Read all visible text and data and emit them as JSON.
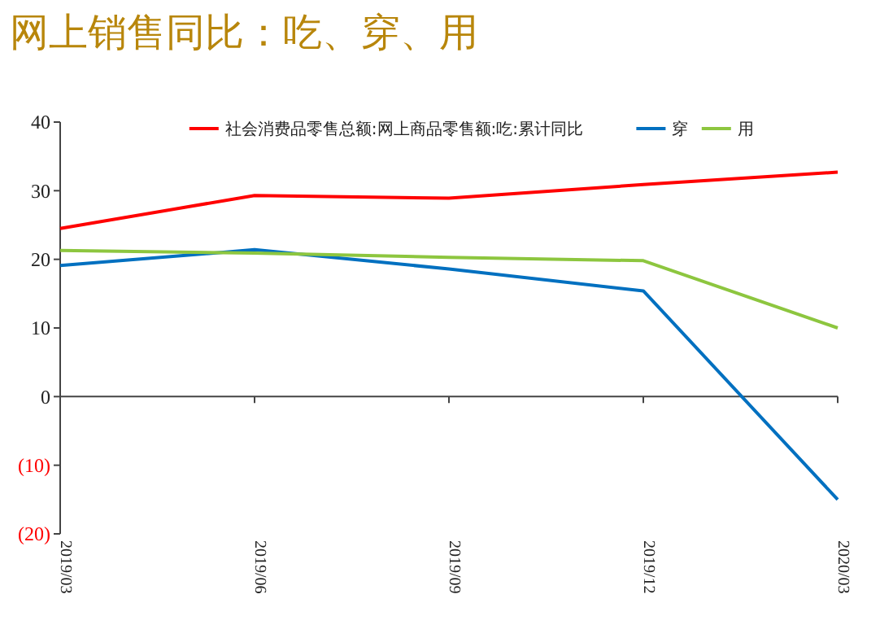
{
  "chart_data": {
    "type": "line",
    "title": "网上销售同比：吃、穿、用",
    "categories": [
      "2019/03",
      "2019/06",
      "2019/09",
      "2019/12",
      "2020/03"
    ],
    "series": [
      {
        "name": "社会消费品零售总额:网上商品零售额:吃:累计同比",
        "color": "#ff0000",
        "values": [
          24.5,
          29.3,
          28.9,
          30.9,
          32.7
        ]
      },
      {
        "name": "穿",
        "color": "#0070c0",
        "values": [
          19.1,
          21.4,
          18.6,
          15.4,
          -15.0
        ]
      },
      {
        "name": "用",
        "color": "#8dc63f",
        "values": [
          21.3,
          20.9,
          20.3,
          19.8,
          10.0
        ]
      }
    ],
    "ylim": [
      -20,
      40
    ],
    "yticks": [
      {
        "value": -20,
        "label": "(20)"
      },
      {
        "value": -10,
        "label": "(10)"
      },
      0,
      10,
      20,
      30,
      40
    ],
    "legend": "top",
    "marker": "none",
    "line_style": "solid"
  }
}
